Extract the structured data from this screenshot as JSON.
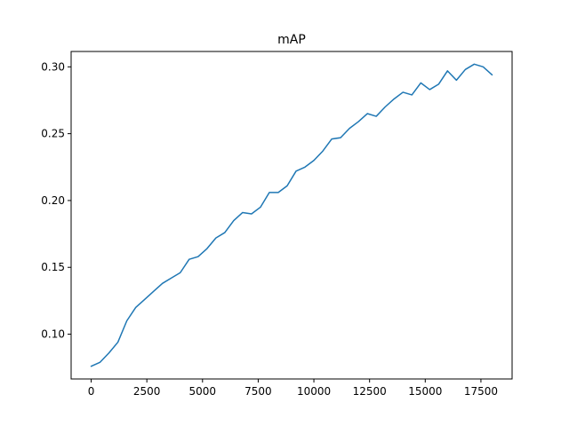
{
  "chart_data": {
    "type": "line",
    "title": "mAP",
    "xlabel": "",
    "ylabel": "",
    "xlim": [
      -900,
      18900
    ],
    "ylim": [
      0.0665,
      0.3115
    ],
    "grid": false,
    "xticks": [
      0,
      2500,
      5000,
      7500,
      10000,
      12500,
      15000,
      17500
    ],
    "xtick_labels": [
      "0",
      "2500",
      "5000",
      "7500",
      "10000",
      "12500",
      "15000",
      "17500"
    ],
    "yticks": [
      0.1,
      0.15,
      0.2,
      0.25,
      0.3
    ],
    "ytick_labels": [
      "0.10",
      "0.15",
      "0.20",
      "0.25",
      "0.30"
    ],
    "series": [
      {
        "color": "#1f77b4",
        "x": [
          0,
          400,
          800,
          1200,
          1600,
          2000,
          2400,
          2800,
          3200,
          3600,
          4000,
          4400,
          4800,
          5200,
          5600,
          6000,
          6400,
          6800,
          7200,
          7600,
          8000,
          8400,
          8800,
          9200,
          9600,
          10000,
          10400,
          10800,
          11200,
          11600,
          12000,
          12400,
          12800,
          13200,
          13600,
          14000,
          14400,
          14800,
          15200,
          15600,
          16000,
          16400,
          16800,
          17200,
          17600,
          18000
        ],
        "y": [
          0.076,
          0.079,
          0.086,
          0.094,
          0.11,
          0.12,
          0.126,
          0.132,
          0.138,
          0.142,
          0.146,
          0.156,
          0.158,
          0.164,
          0.172,
          0.176,
          0.185,
          0.191,
          0.19,
          0.195,
          0.206,
          0.206,
          0.211,
          0.222,
          0.225,
          0.23,
          0.237,
          0.246,
          0.247,
          0.254,
          0.259,
          0.265,
          0.263,
          0.27,
          0.276,
          0.281,
          0.279,
          0.288,
          0.283,
          0.287,
          0.297,
          0.29,
          0.298,
          0.302,
          0.3,
          0.294
        ]
      }
    ]
  }
}
